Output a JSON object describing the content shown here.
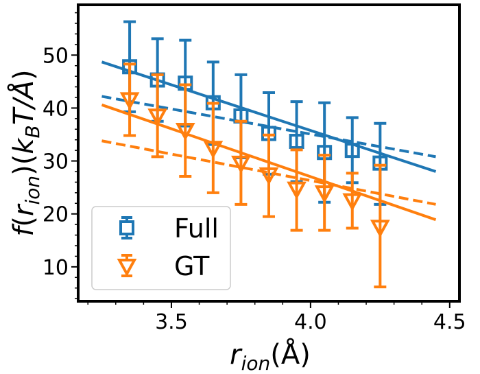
{
  "chart_data": {
    "type": "scatter",
    "title": "",
    "xlabel": "r_ion(Å)",
    "ylabel": "f(r_ion)(k_B T/Å)",
    "xlim": [
      3.165,
      4.535
    ],
    "ylim": [
      3.5,
      59.5
    ],
    "x_ticks": [
      3.5,
      4.0,
      4.5
    ],
    "x_tick_labels": [
      "3.5",
      "4.0",
      "4.5"
    ],
    "y_ticks": [
      10,
      20,
      30,
      40,
      50
    ],
    "y_tick_labels": [
      "10",
      "20",
      "30",
      "40",
      "50"
    ],
    "grid": false,
    "legend_position": "lower-left",
    "series": [
      {
        "name": "Full",
        "color": "#1f77b4",
        "marker": "square",
        "x": [
          3.35,
          3.45,
          3.55,
          3.65,
          3.75,
          3.85,
          3.95,
          4.05,
          4.15,
          4.25
        ],
        "y": [
          47.8,
          45.3,
          44.7,
          41.0,
          38.5,
          35.2,
          33.7,
          31.6,
          32.0,
          29.6
        ],
        "err_low": [
          39.3,
          37.5,
          36.6,
          33.1,
          30.6,
          27.5,
          26.1,
          22.2,
          25.9,
          21.8
        ],
        "err_high": [
          56.3,
          53.1,
          52.8,
          48.7,
          46.3,
          42.9,
          41.2,
          41.0,
          38.2,
          37.1
        ],
        "fit_solid": {
          "x": [
            3.25,
            4.45
          ],
          "y": [
            48.7,
            28.0
          ]
        },
        "fit_dashed": {
          "x": [
            3.25,
            4.45
          ],
          "y": [
            42.2,
            30.8
          ]
        }
      },
      {
        "name": "GT",
        "color": "#ff7f0e",
        "marker": "triangle-down",
        "x": [
          3.35,
          3.45,
          3.55,
          3.65,
          3.75,
          3.85,
          3.95,
          4.05,
          4.15,
          4.25
        ],
        "y": [
          41.7,
          38.6,
          35.9,
          32.5,
          29.7,
          27.5,
          24.8,
          24.1,
          22.6,
          17.6
        ],
        "err_low": [
          34.8,
          30.8,
          27.1,
          24.0,
          21.8,
          19.5,
          16.9,
          16.9,
          17.3,
          6.2
        ],
        "err_high": [
          48.3,
          46.3,
          44.4,
          40.9,
          37.5,
          34.9,
          32.1,
          31.1,
          27.7,
          29.2
        ],
        "fit_solid": {
          "x": [
            3.25,
            4.45
          ],
          "y": [
            40.6,
            18.9
          ]
        },
        "fit_dashed": {
          "x": [
            3.25,
            4.45
          ],
          "y": [
            33.8,
            21.8
          ]
        }
      }
    ]
  }
}
